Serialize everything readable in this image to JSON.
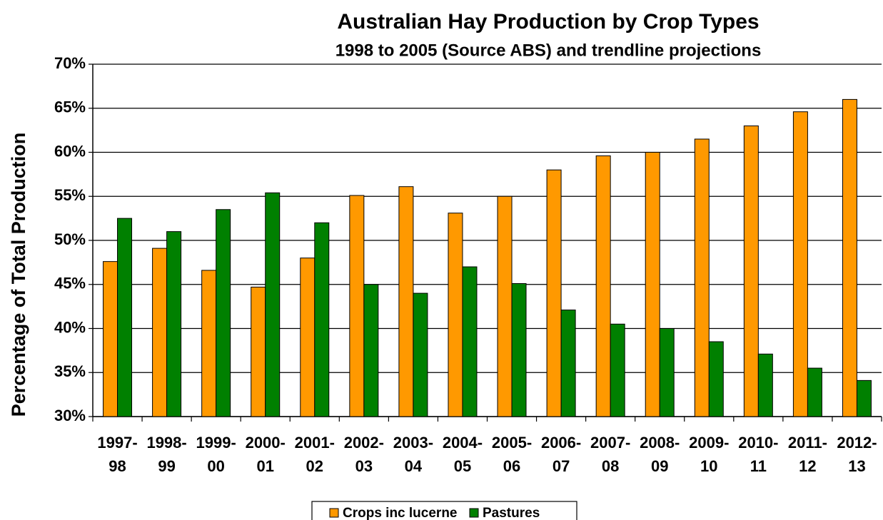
{
  "chart_data": {
    "type": "bar",
    "title": "Australian Hay Production by Crop Types",
    "subtitle": "1998 to 2005 (Source ABS) and trendline projections",
    "y_label": "Percentage of Total Production",
    "categories": [
      [
        "1997-",
        "98"
      ],
      [
        "1998-",
        "99"
      ],
      [
        "1999-",
        "00"
      ],
      [
        "2000-",
        "01"
      ],
      [
        "2001-",
        "02"
      ],
      [
        "2002-",
        "03"
      ],
      [
        "2003-",
        "04"
      ],
      [
        "2004-",
        "05"
      ],
      [
        "2005-",
        "06"
      ],
      [
        "2006-",
        "07"
      ],
      [
        "2007-",
        "08"
      ],
      [
        "2008-",
        "09"
      ],
      [
        "2009-",
        "10"
      ],
      [
        "2010-",
        "11"
      ],
      [
        "2011-",
        "12"
      ],
      [
        "2012-",
        "13"
      ]
    ],
    "series": [
      {
        "name": "Crops inc lucerne",
        "color": "#ff9900",
        "values": [
          47.6,
          49.1,
          46.6,
          44.7,
          48.0,
          55.1,
          56.1,
          53.1,
          55.0,
          58.0,
          59.6,
          60.0,
          61.5,
          63.0,
          64.6,
          66.0
        ]
      },
      {
        "name": "Pastures",
        "color": "#008000",
        "values": [
          52.5,
          51.0,
          53.5,
          55.4,
          52.0,
          45.0,
          44.0,
          47.0,
          45.1,
          42.1,
          40.5,
          40.0,
          38.5,
          37.1,
          35.5,
          34.1
        ]
      }
    ],
    "ylim": [
      30,
      70
    ],
    "yticks": [
      {
        "value": 30,
        "label": "30%"
      },
      {
        "value": 35,
        "label": "35%"
      },
      {
        "value": 40,
        "label": "40%"
      },
      {
        "value": 45,
        "label": "45%"
      },
      {
        "value": 50,
        "label": "50%"
      },
      {
        "value": 55,
        "label": "55%"
      },
      {
        "value": 60,
        "label": "60%"
      },
      {
        "value": 65,
        "label": "65%"
      },
      {
        "value": 70,
        "label": "70%"
      }
    ],
    "grid": true,
    "legend": "bottom"
  }
}
